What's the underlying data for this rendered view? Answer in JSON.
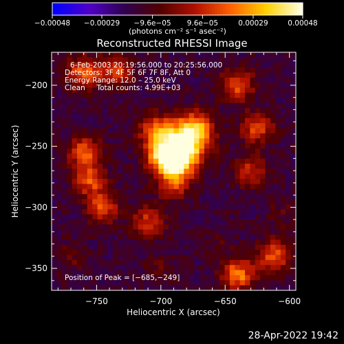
{
  "chart_data": {
    "type": "heatmap",
    "title": "Reconstructed RHESSI Image",
    "xlabel": "Heliocentric X (arcsec)",
    "ylabel": "Heliocentric Y (arcsec)",
    "xlim": [
      -785,
      -595
    ],
    "ylim": [
      -368,
      -173
    ],
    "x_ticks": [
      -750,
      -700,
      -650,
      -600
    ],
    "x_tick_labels": [
      "−750",
      "−700",
      "−650",
      "−600"
    ],
    "y_ticks": [
      -200,
      -250,
      -300,
      -350
    ],
    "y_tick_labels": [
      "−200",
      "−250",
      "−300",
      "−350"
    ],
    "colorbar": {
      "range": [
        -0.00048,
        0.00048
      ],
      "ticks": [
        -0.00048,
        -0.00029,
        -9.6e-05,
        9.6e-05,
        0.00029,
        0.00048
      ],
      "tick_labels": [
        "−0.00048",
        "−0.00029",
        "−9.6e−05",
        "9.6e−05",
        "0.00029",
        "0.00048"
      ],
      "unit_label": "(photons cm⁻² s⁻¹ asec⁻²)",
      "colors": [
        "#0000ff",
        "#5000c8",
        "#300050",
        "#500000",
        "#b01000",
        "#ff6000",
        "#ffd000",
        "#ffffe0"
      ]
    },
    "info_lines": [
      "6-Feb-2003 20:19:56.000 to 20:25:56.000",
      "Detectors: 3F 4F 5F 6F 7F 8F, Att 0",
      "Energy Range: 12.0 – 25.0 keV",
      "Clean     Total counts: 4.99E+03"
    ],
    "peak_text": "Position of Peak = [−685,−249]",
    "sources": [
      {
        "x": -683,
        "y": -248,
        "value": 0.00048
      },
      {
        "x": -688,
        "y": -263,
        "value": 0.0003
      },
      {
        "x": -700,
        "y": -258,
        "value": 0.00018
      },
      {
        "x": -705,
        "y": -237,
        "value": 0.00014
      },
      {
        "x": -671,
        "y": -234,
        "value": 0.00014
      },
      {
        "x": -690,
        "y": -281,
        "value": 0.00012
      },
      {
        "x": -760,
        "y": -255,
        "value": 0.00018
      },
      {
        "x": -755,
        "y": -278,
        "value": 0.00016
      },
      {
        "x": -745,
        "y": -300,
        "value": 0.00014
      },
      {
        "x": -760,
        "y": -190,
        "value": 0.0002
      },
      {
        "x": -735,
        "y": -188,
        "value": 0.00014
      },
      {
        "x": -640,
        "y": -200,
        "value": 0.00016
      },
      {
        "x": -625,
        "y": -235,
        "value": 0.00014
      },
      {
        "x": -630,
        "y": -270,
        "value": 0.0001
      },
      {
        "x": -640,
        "y": -355,
        "value": 0.00024
      },
      {
        "x": -612,
        "y": -340,
        "value": 0.00018
      },
      {
        "x": -710,
        "y": -312,
        "value": 0.00011
      },
      {
        "x": -655,
        "y": -330,
        "value": -0.0001
      },
      {
        "x": -605,
        "y": -305,
        "value": -8e-05
      },
      {
        "x": -700,
        "y": -350,
        "value": -8e-05
      },
      {
        "x": -770,
        "y": -340,
        "value": -6e-05
      }
    ]
  },
  "footer": {
    "timestamp": "28-Apr-2022 19:42"
  }
}
